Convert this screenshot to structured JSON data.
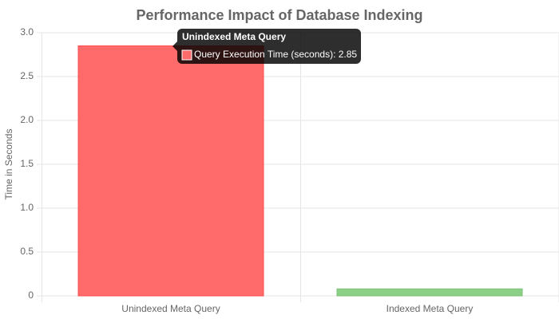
{
  "chart_data": {
    "type": "bar",
    "title": "Performance Impact of Database Indexing",
    "y_label": "Time in Seconds",
    "categories": [
      "Unindexed Meta Query",
      "Indexed Meta Query"
    ],
    "series": [
      {
        "name": "Query Execution Time (seconds)",
        "colors": [
          "#ff6b6b",
          "#8ccf86"
        ],
        "border_colors": [
          "#ff4d4d",
          "#7cc276"
        ],
        "values": [
          2.85,
          0.08
        ]
      }
    ],
    "ylim": [
      0,
      3
    ],
    "yticks": [
      0,
      0.5,
      {
        "value": 1,
        "label": "1.0"
      },
      1.5,
      {
        "value": 2,
        "label": "2.0"
      },
      2.5,
      {
        "value": 3,
        "label": "3.0"
      }
    ],
    "grid": true,
    "tooltip": {
      "title": "Unindexed Meta Query",
      "label": "Query Execution Time (seconds): 2.85"
    }
  }
}
